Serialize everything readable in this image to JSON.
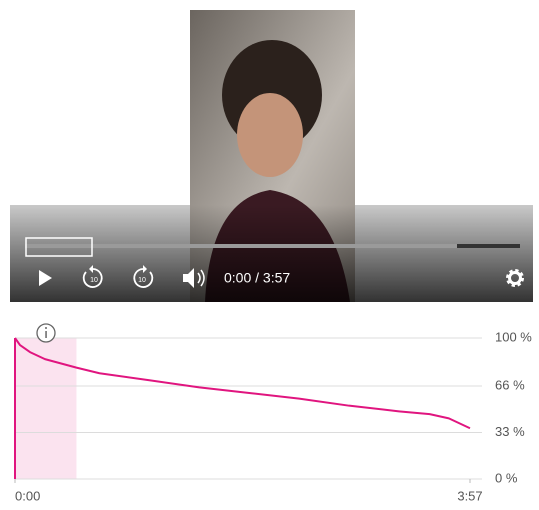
{
  "player": {
    "time": "0:00 / 3:57",
    "rewind_label": "10",
    "forward_label": "10"
  },
  "chart_data": {
    "type": "line",
    "x": [
      0,
      2.6,
      7.8,
      15.6,
      32,
      44,
      70,
      96,
      122,
      148,
      174,
      200,
      216,
      226,
      237
    ],
    "series": [
      {
        "color": "#e0157f",
        "values": [
          100,
          95,
          90,
          85,
          79,
          75,
          70,
          65,
          61,
          57,
          52,
          48,
          46,
          43,
          36
        ]
      }
    ],
    "xlim": [
      0,
      237
    ],
    "xticks": [
      {
        "value": 0,
        "label": "0:00"
      },
      {
        "value": 237,
        "label": "3:57"
      }
    ],
    "ylim": [
      0,
      100
    ],
    "yticks": [
      {
        "value": 100,
        "label": "100 %"
      },
      {
        "value": 66,
        "label": "66 %"
      },
      {
        "value": 33,
        "label": "33 %"
      },
      {
        "value": 0,
        "label": "0 %"
      }
    ],
    "highlight": [
      0,
      32
    ],
    "highlight_color": "#fbe3ef",
    "grid": true
  }
}
